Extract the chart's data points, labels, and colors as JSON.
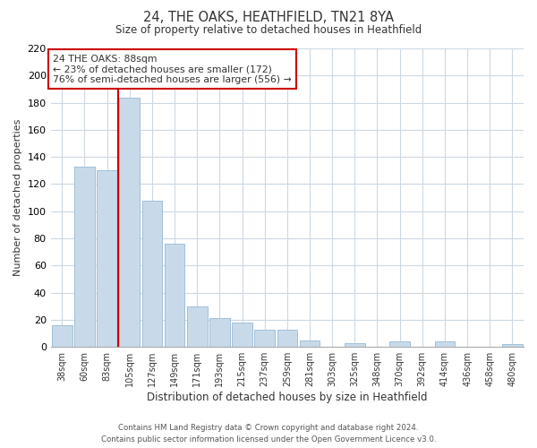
{
  "title": "24, THE OAKS, HEATHFIELD, TN21 8YA",
  "subtitle": "Size of property relative to detached houses in Heathfield",
  "xlabel": "Distribution of detached houses by size in Heathfield",
  "ylabel": "Number of detached properties",
  "bar_labels": [
    "38sqm",
    "60sqm",
    "83sqm",
    "105sqm",
    "127sqm",
    "149sqm",
    "171sqm",
    "193sqm",
    "215sqm",
    "237sqm",
    "259sqm",
    "281sqm",
    "303sqm",
    "325sqm",
    "348sqm",
    "370sqm",
    "392sqm",
    "414sqm",
    "436sqm",
    "458sqm",
    "480sqm"
  ],
  "bar_values": [
    16,
    133,
    130,
    184,
    108,
    76,
    30,
    21,
    18,
    13,
    13,
    5,
    0,
    3,
    0,
    4,
    0,
    4,
    0,
    0,
    2
  ],
  "bar_color": "#c8daea",
  "bar_edge_color": "#a0c0d8",
  "vline_color": "#cc0000",
  "vline_index": 2.5,
  "annotation_title": "24 THE OAKS: 88sqm",
  "annotation_line1": "← 23% of detached houses are smaller (172)",
  "annotation_line2": "76% of semi-detached houses are larger (556) →",
  "annotation_box_color": "#ffffff",
  "annotation_box_edge": "#cc0000",
  "ylim": [
    0,
    220
  ],
  "yticks": [
    0,
    20,
    40,
    60,
    80,
    100,
    120,
    140,
    160,
    180,
    200,
    220
  ],
  "footer1": "Contains HM Land Registry data © Crown copyright and database right 2024.",
  "footer2": "Contains public sector information licensed under the Open Government Licence v3.0.",
  "bg_color": "#ffffff",
  "grid_color": "#ccd8e4"
}
